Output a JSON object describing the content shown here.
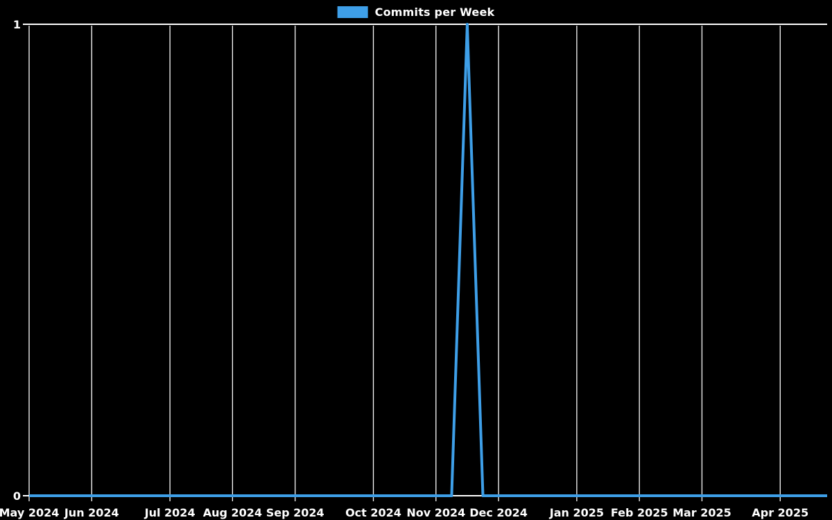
{
  "chart_data": {
    "type": "line",
    "title": "",
    "xlabel": "",
    "ylabel": "",
    "legend": {
      "label": "Commits per Week",
      "position": "top-center"
    },
    "colors": {
      "background": "#000000",
      "line": "#3e9fe8",
      "grid": "#ffffff",
      "axis": "#ffffff",
      "text": "#ffffff"
    },
    "grid": "vertical-monthly-only",
    "ylim": [
      0,
      1
    ],
    "y_ticks": [
      {
        "value": 0,
        "label": "0"
      },
      {
        "value": 1,
        "label": "1"
      }
    ],
    "x_unit": "weekly points, indices 0-51",
    "x_ticks": [
      {
        "week": 0,
        "label": "May 2024"
      },
      {
        "week": 4,
        "label": "Jun 2024"
      },
      {
        "week": 9,
        "label": "Jul 2024"
      },
      {
        "week": 13,
        "label": "Aug 2024"
      },
      {
        "week": 17,
        "label": "Sep 2024"
      },
      {
        "week": 22,
        "label": "Oct 2024"
      },
      {
        "week": 26,
        "label": "Nov 2024"
      },
      {
        "week": 30,
        "label": "Dec 2024"
      },
      {
        "week": 35,
        "label": "Jan 2025"
      },
      {
        "week": 39,
        "label": "Feb 2025"
      },
      {
        "week": 43,
        "label": "Mar 2025"
      },
      {
        "week": 48,
        "label": "Apr 2025"
      }
    ],
    "series": [
      {
        "name": "Commits per Week",
        "values": [
          0,
          0,
          0,
          0,
          0,
          0,
          0,
          0,
          0,
          0,
          0,
          0,
          0,
          0,
          0,
          0,
          0,
          0,
          0,
          0,
          0,
          0,
          0,
          0,
          0,
          0,
          0,
          0,
          1,
          0,
          0,
          0,
          0,
          0,
          0,
          0,
          0,
          0,
          0,
          0,
          0,
          0,
          0,
          0,
          0,
          0,
          0,
          0,
          0,
          0,
          0,
          0
        ]
      }
    ],
    "peak": {
      "week_index": 28,
      "value": 1,
      "between_ticks": [
        "Nov 2024",
        "Dec 2024"
      ]
    }
  }
}
